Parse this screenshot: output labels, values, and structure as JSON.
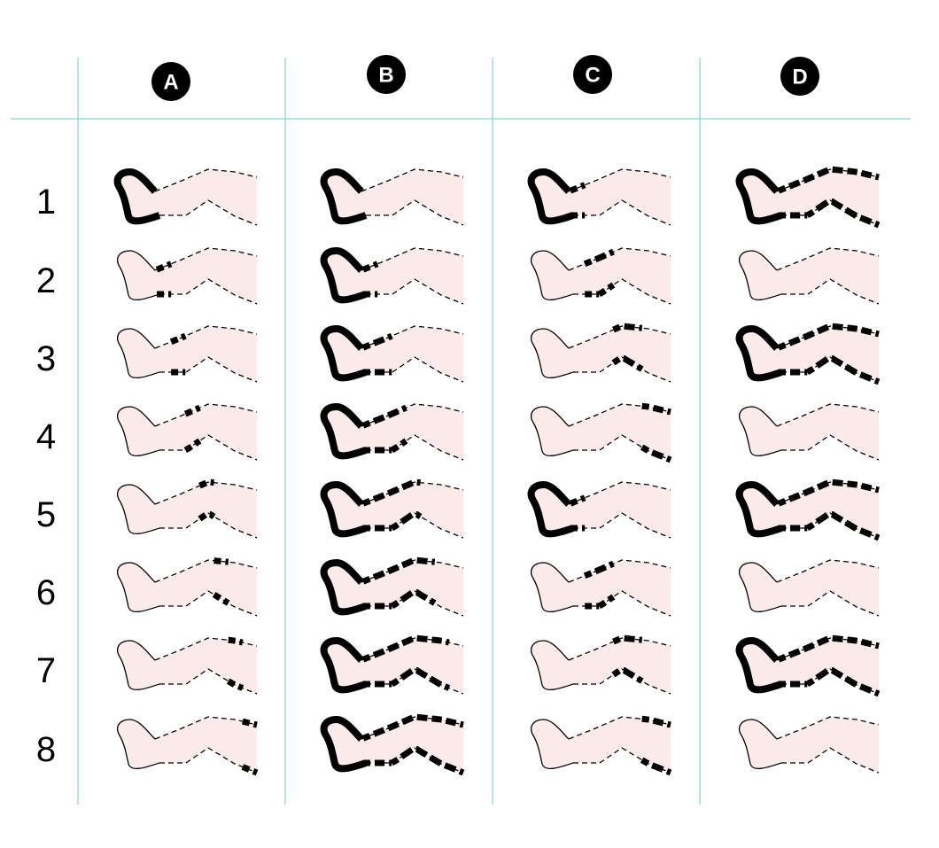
{
  "columns": [
    "A",
    "B",
    "C",
    "D"
  ],
  "rows": [
    "1",
    "2",
    "3",
    "4",
    "5",
    "6",
    "7",
    "8"
  ]
}
